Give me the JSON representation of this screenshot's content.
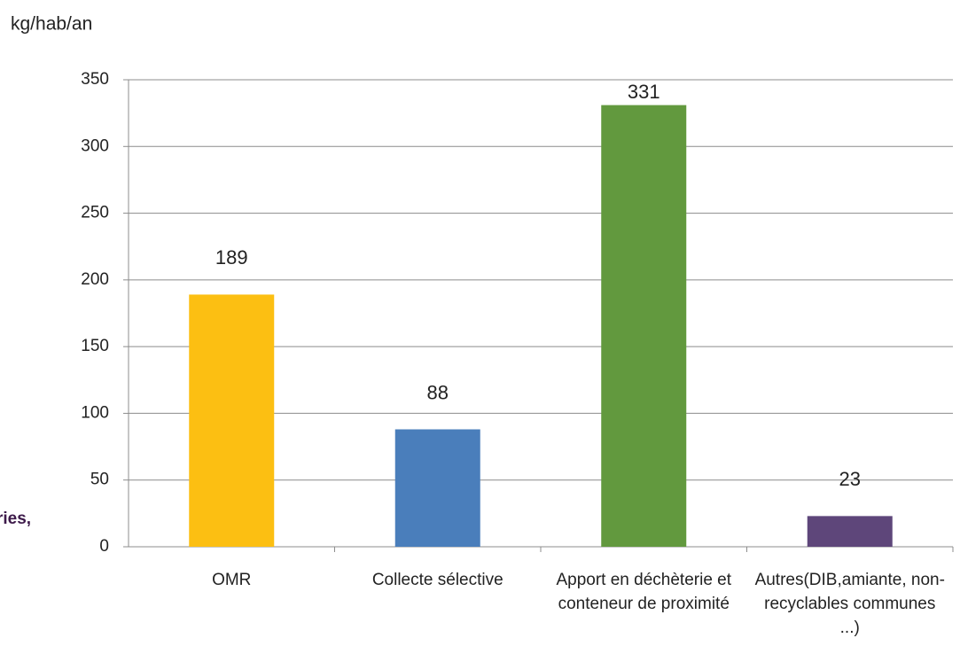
{
  "chart_data": {
    "type": "bar",
    "y_axis_label": "kg/hab/an",
    "side_fragment": "ries,",
    "categories": [
      "OMR",
      "Collecte sélective",
      "Apport en déchèterie et conteneur de proximité",
      "Autres(DIB,amiante, non-recyclables communes ...)"
    ],
    "values": [
      189,
      88,
      331,
      23
    ],
    "colors": [
      "#fcbf12",
      "#4a7ebb",
      "#62993e",
      "#5e467a"
    ],
    "ylim": [
      0,
      350
    ],
    "yticks": [
      0,
      50,
      100,
      150,
      200,
      250,
      300,
      350
    ],
    "grid": true
  }
}
